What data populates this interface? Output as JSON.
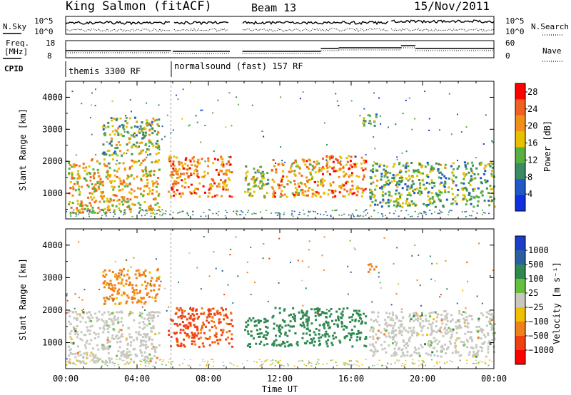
{
  "header": {
    "station": "King Salmon (fitACF)",
    "beam": "Beam 13",
    "date": "15/Nov/2011"
  },
  "top_panels": {
    "nsky_label": "N.Sky",
    "nsky_ticks": [
      "10^5",
      "10^0"
    ],
    "nsearch_label": "N.Search",
    "nsearch_ticks": [
      "10^5",
      "10^0"
    ],
    "freq_label_line1": "Freq.",
    "freq_label_line2": "[MHz]",
    "freq_ticks": [
      "18",
      "8"
    ],
    "nave_label": "Nave",
    "nave_ticks": [
      "60",
      "0"
    ],
    "cpid_label": "CPID",
    "cpid_segments": [
      {
        "label": "themis 3300 RF",
        "start_hour": 0
      },
      {
        "label": "normalsound (fast) 157 RF",
        "start_hour": 5.9
      }
    ]
  },
  "x_axis": {
    "title": "Time UT",
    "ticks": [
      "00:00",
      "04:00",
      "08:00",
      "12:00",
      "16:00",
      "20:00",
      "00:00"
    ]
  },
  "colors": {
    "power_scale": [
      "#1030e0",
      "#2058c8",
      "#3a8a64",
      "#58b040",
      "#e8c000",
      "#f09018",
      "#f06020",
      "#ff0000"
    ],
    "velocity_scale": [
      "#1a3ec8",
      "#2a60a0",
      "#2e8850",
      "#66c040",
      "#c8c8c0",
      "#f0c000",
      "#f08018",
      "#f04010",
      "#ff0000"
    ]
  },
  "chart_data": [
    {
      "type": "heatmap",
      "name": "power",
      "xlabel": "Time UT",
      "ylabel": "Slant Range [km]",
      "xlim": [
        0,
        24
      ],
      "ylim": [
        200,
        4500
      ],
      "yticks": [
        "1000",
        "2000",
        "3000",
        "4000"
      ],
      "colorbar": {
        "label": "Power [dB]",
        "ticks": [
          "4",
          "8",
          "12",
          "16",
          "20",
          "24",
          "28"
        ],
        "range": [
          0,
          30
        ]
      },
      "echo_regions": [
        {
          "t_start": 0.1,
          "t_end": 5.2,
          "r_low": 400,
          "r_high": 2100,
          "value": 18
        },
        {
          "t_start": 2.0,
          "t_end": 5.2,
          "r_low": 2200,
          "r_high": 3400,
          "value": 14
        },
        {
          "t_start": 5.7,
          "t_end": 9.3,
          "r_low": 900,
          "r_high": 2200,
          "value": 22
        },
        {
          "t_start": 10.0,
          "t_end": 11.3,
          "r_low": 900,
          "r_high": 1900,
          "value": 14
        },
        {
          "t_start": 11.5,
          "t_end": 14.3,
          "r_low": 900,
          "r_high": 2100,
          "value": 20
        },
        {
          "t_start": 14.3,
          "t_end": 16.8,
          "r_low": 900,
          "r_high": 2200,
          "value": 22
        },
        {
          "t_start": 16.6,
          "t_end": 17.4,
          "r_low": 3100,
          "r_high": 3500,
          "value": 10
        },
        {
          "t_start": 17.0,
          "t_end": 24.0,
          "r_low": 600,
          "r_high": 2000,
          "value": 12
        }
      ]
    },
    {
      "type": "heatmap",
      "name": "velocity",
      "xlabel": "Time UT",
      "ylabel": "Slant Range [km]",
      "xlim": [
        0,
        24
      ],
      "ylim": [
        200,
        4500
      ],
      "yticks": [
        "1000",
        "2000",
        "3000",
        "4000"
      ],
      "colorbar": {
        "label": "Velocity [m s⁻¹]",
        "ticks": [
          "1000",
          "500",
          "100",
          "25",
          "−25",
          "−100",
          "−500",
          "−1000"
        ]
      },
      "echo_regions": [
        {
          "t_start": 0.1,
          "t_end": 5.2,
          "r_low": 400,
          "r_high": 2000,
          "value": 0
        },
        {
          "t_start": 2.0,
          "t_end": 5.2,
          "r_low": 2200,
          "r_high": 3300,
          "value": -200
        },
        {
          "t_start": 5.7,
          "t_end": 9.3,
          "r_low": 900,
          "r_high": 2100,
          "value": -600
        },
        {
          "t_start": 10.0,
          "t_end": 11.3,
          "r_low": 900,
          "r_high": 1800,
          "value": 300
        },
        {
          "t_start": 11.5,
          "t_end": 14.3,
          "r_low": 900,
          "r_high": 2100,
          "value": 250
        },
        {
          "t_start": 14.3,
          "t_end": 16.8,
          "r_low": 900,
          "r_high": 2100,
          "value": 300
        },
        {
          "t_start": 16.9,
          "t_end": 17.4,
          "r_low": 3200,
          "r_high": 3500,
          "value": -300
        },
        {
          "t_start": 17.0,
          "t_end": 24.0,
          "r_low": 600,
          "r_high": 2000,
          "value": 0
        }
      ]
    }
  ]
}
